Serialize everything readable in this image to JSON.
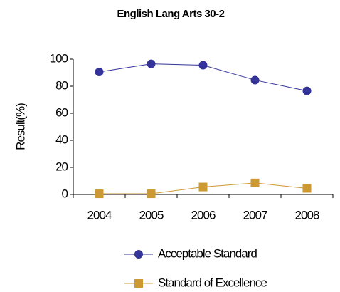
{
  "chart_data": {
    "type": "line",
    "title": "English Lang Arts 30-2",
    "y_label": "Result(%)",
    "categories": [
      "2004",
      "2005",
      "2006",
      "2007",
      "2008"
    ],
    "series": [
      {
        "name": "Acceptable Standard",
        "color": "#333399",
        "marker": "circle",
        "values": [
          90.5,
          96.5,
          95.5,
          84.5,
          76.5
        ]
      },
      {
        "name": "Standard of Excellence",
        "color": "#cc9933",
        "marker": "square",
        "values": [
          0.5,
          0.5,
          5.5,
          8.5,
          4.5
        ]
      }
    ],
    "ylim": [
      0,
      100
    ],
    "yticks": [
      0,
      20,
      40,
      60,
      80,
      100
    ],
    "grid": false,
    "legend": "bottom"
  }
}
